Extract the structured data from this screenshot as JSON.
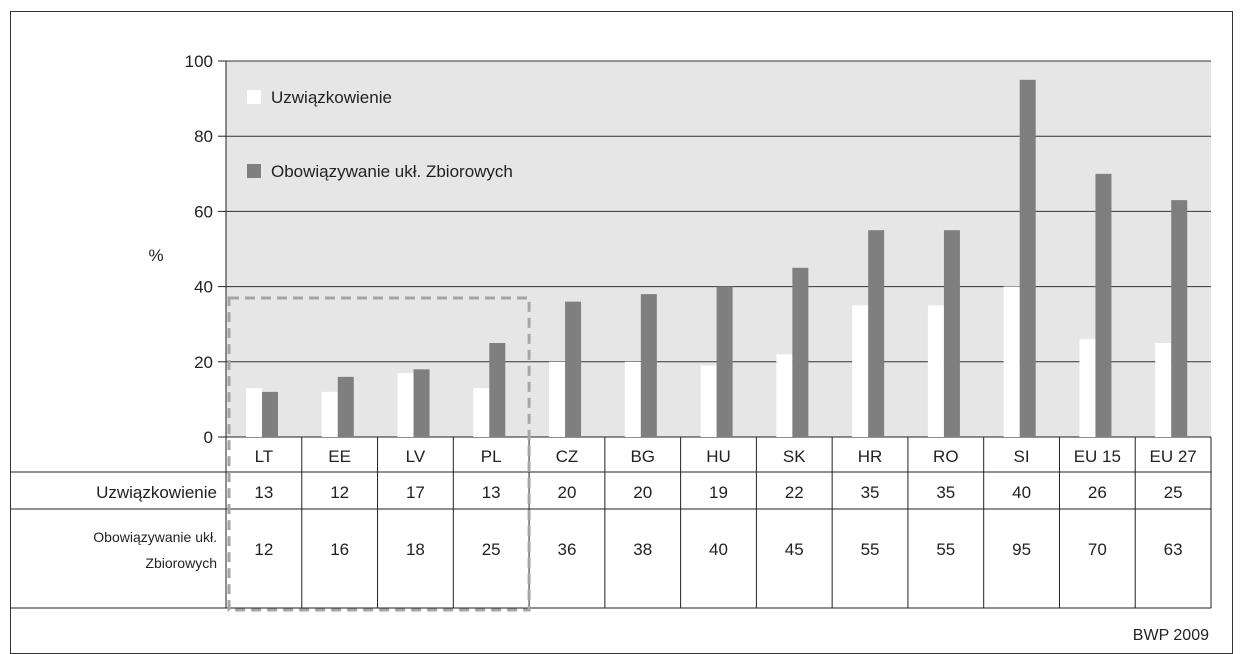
{
  "chart_data": {
    "type": "bar",
    "ylabel": "%",
    "ylim": [
      0,
      100
    ],
    "yticks": [
      0,
      20,
      40,
      60,
      80,
      100
    ],
    "grid": true,
    "legend_position": "top-left",
    "categories": [
      "LT",
      "EE",
      "LV",
      "PL",
      "CZ",
      "BG",
      "HU",
      "SK",
      "HR",
      "RO",
      "SI",
      "EU 15",
      "EU 27"
    ],
    "series": [
      {
        "name": "Uzwiązkowienie",
        "color": "#ffffff",
        "values": [
          13,
          12,
          17,
          13,
          20,
          20,
          19,
          22,
          35,
          35,
          40,
          26,
          25
        ]
      },
      {
        "name": "Obowiązywanie ukł. Zbiorowych",
        "color": "#7f7f7f",
        "values": [
          12,
          16,
          18,
          25,
          36,
          38,
          40,
          45,
          55,
          55,
          95,
          70,
          63
        ]
      }
    ],
    "table": {
      "row_labels": [
        "Uzwiązkowienie",
        "Obowiązywanie ukł.\nZbiorowych"
      ],
      "row_label_lines": [
        [
          "Uzwiązkowienie"
        ],
        [
          "Obowiązywanie ukł.",
          "Zbiorowych"
        ]
      ]
    },
    "highlight_box_categories": [
      "LT",
      "EE",
      "LV",
      "PL"
    ],
    "source": "BWP 2009"
  },
  "colors": {
    "plot_background": "#e6e6e6",
    "gridline": "#333333",
    "highlight_box": "#a6a6a6"
  }
}
